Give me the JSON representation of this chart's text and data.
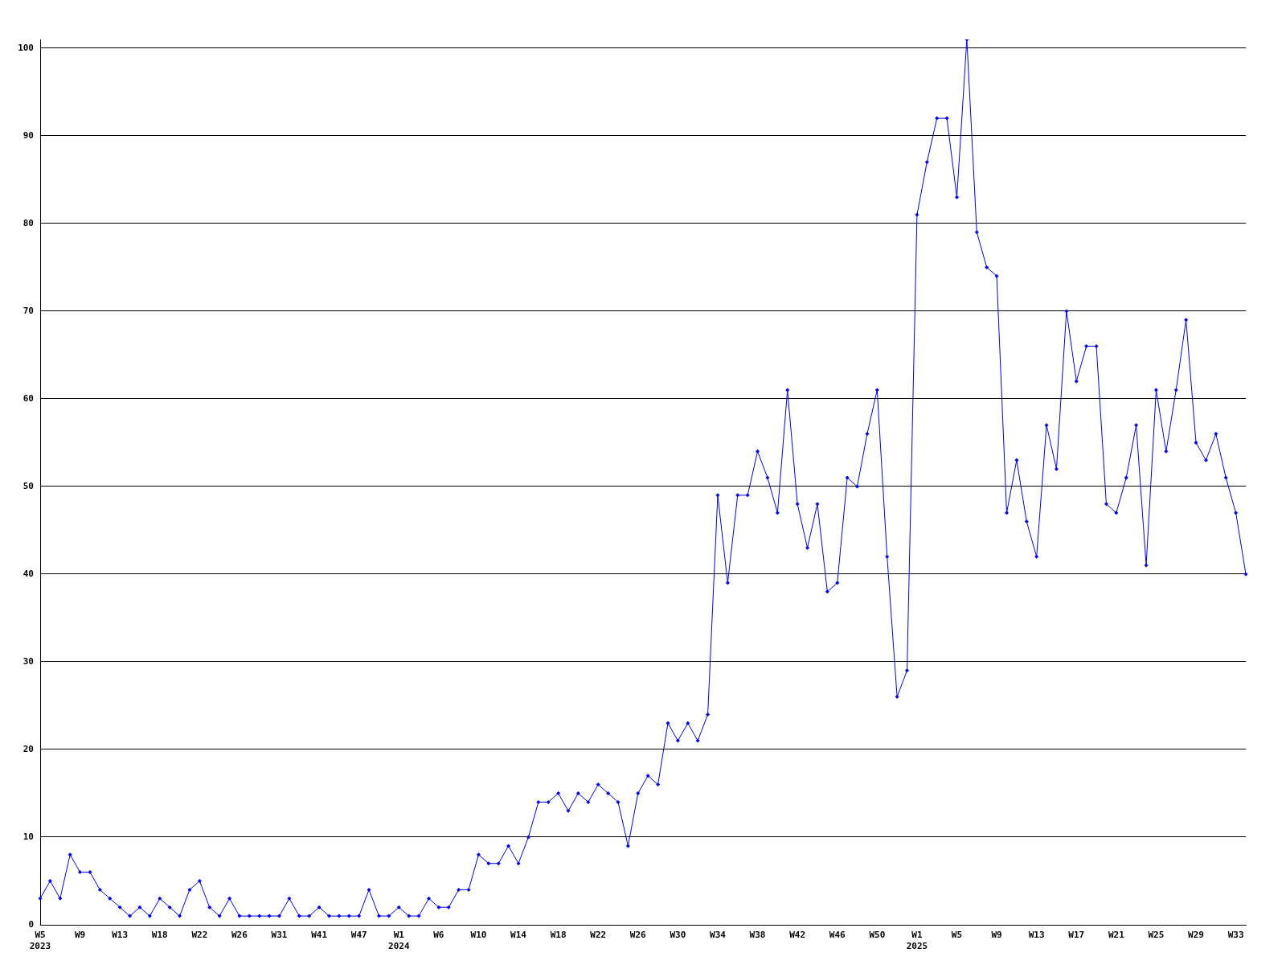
{
  "chart_data": {
    "type": "line",
    "categories": [
      "W5\n2023",
      null,
      null,
      null,
      "W9",
      null,
      null,
      null,
      "W13",
      null,
      null,
      null,
      "W18",
      null,
      null,
      null,
      "W22",
      null,
      null,
      null,
      "W26",
      null,
      null,
      null,
      "W31",
      null,
      null,
      null,
      "W41",
      null,
      null,
      null,
      "W47",
      null,
      null,
      null,
      "W1\n2024",
      null,
      null,
      null,
      "W6",
      null,
      null,
      null,
      "W10",
      null,
      null,
      null,
      "W14",
      null,
      null,
      null,
      "W18",
      null,
      null,
      null,
      "W22",
      null,
      null,
      null,
      "W26",
      null,
      null,
      null,
      "W30",
      null,
      null,
      null,
      "W34",
      null,
      null,
      null,
      "W38",
      null,
      null,
      null,
      "W42",
      null,
      null,
      null,
      "W46",
      null,
      null,
      null,
      "W50",
      null,
      null,
      null,
      "W1\n2025",
      null,
      null,
      null,
      "W5",
      null,
      null,
      null,
      "W9",
      null,
      null,
      null,
      "W13",
      null,
      null,
      null,
      "W17",
      null,
      null,
      null,
      "W21",
      null,
      null,
      null,
      "W25",
      null,
      null,
      null,
      "W29",
      null,
      null,
      null,
      "W33",
      null
    ],
    "series": [
      {
        "color": "#0000ff",
        "values": [
          3,
          5,
          3,
          8,
          6,
          6,
          4,
          3,
          2,
          1,
          2,
          1,
          3,
          2,
          1,
          4,
          5,
          2,
          1,
          3,
          1,
          1,
          1,
          1,
          1,
          3,
          1,
          1,
          2,
          1,
          1,
          1,
          1,
          4,
          1,
          1,
          2,
          1,
          1,
          3,
          2,
          2,
          4,
          4,
          8,
          7,
          7,
          9,
          7,
          10,
          14,
          14,
          15,
          13,
          15,
          14,
          16,
          15,
          14,
          9,
          15,
          17,
          16,
          23,
          21,
          23,
          21,
          24,
          49,
          39,
          49,
          49,
          54,
          51,
          47,
          61,
          48,
          43,
          48,
          38,
          39,
          51,
          50,
          56,
          61,
          42,
          26,
          29,
          81,
          87,
          92,
          92,
          83,
          101,
          79,
          75,
          74,
          47,
          53,
          46,
          42,
          57,
          52,
          70,
          62,
          66,
          66,
          48,
          47,
          51,
          57,
          41,
          61,
          54,
          61,
          69,
          55,
          53,
          56,
          51,
          47,
          40
        ]
      }
    ],
    "ylim": [
      0,
      101
    ],
    "yticks": [
      0,
      10,
      20,
      30,
      40,
      50,
      60,
      70,
      80,
      90,
      100
    ],
    "grid": "y",
    "legend": false,
    "marker": "diamond",
    "line_style": "solid"
  }
}
